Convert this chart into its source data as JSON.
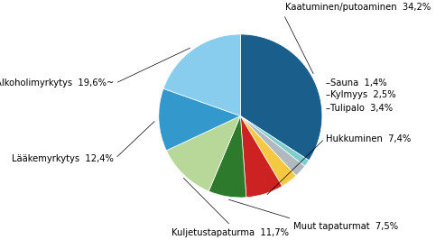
{
  "values": [
    34.2,
    1.4,
    2.5,
    3.4,
    7.4,
    7.5,
    11.7,
    12.4,
    19.6
  ],
  "colors": [
    "#1a5e8c",
    "#7ecece",
    "#b0b8c0",
    "#f5c842",
    "#cc2222",
    "#2d7a2d",
    "#b8d89a",
    "#3399cc",
    "#88ccee"
  ],
  "label_texts": [
    "Kaatuminen/putoaminen  34,2%",
    "–Sauna  1,4%",
    "–Kylmyys  2,5%",
    "–Tulipalo  3,4%",
    "Hukkuminen  7,4%",
    "Muut tapaturmat  7,5%",
    "Kuljetustapaturma  11,7%",
    "Lääkemyrkytys  12,4%",
    "Alkoholimyrkytys  19,6%~"
  ],
  "startangle": 90,
  "fontsize": 7.2,
  "figsize": [
    4.93,
    2.66
  ],
  "dpi": 100
}
